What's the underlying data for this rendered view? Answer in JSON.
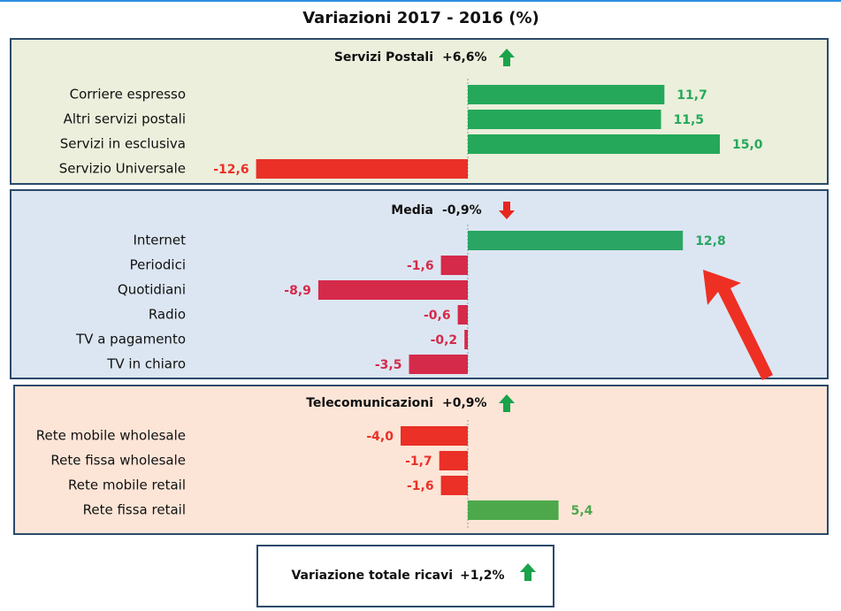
{
  "title": "Variazioni 2017 - 2016 (%)",
  "chart_data": [
    {
      "type": "bar",
      "orientation": "horizontal",
      "title": "Servizi Postali",
      "change": 6.6,
      "change_label": "+6,6%",
      "background": "#ebefdc",
      "positive_color": "#25a85a",
      "negative_color": "#ea3027",
      "categories": [
        "Corriere espresso",
        "Altri servizi postali",
        "Servizi in esclusiva",
        "Servizio Universale"
      ],
      "values": [
        11.7,
        11.5,
        15.0,
        -12.6
      ],
      "value_labels": [
        "11,7",
        "11,5",
        "15,0",
        "-12,6"
      ]
    },
    {
      "type": "bar",
      "orientation": "horizontal",
      "title": "Media",
      "change": -0.9,
      "change_label": "-0,9%",
      "background": "#dce6f2",
      "positive_color": "#2aa564",
      "negative_color": "#d52a4a",
      "categories": [
        "Internet",
        "Periodici",
        "Quotidiani",
        "Radio",
        "TV a pagamento",
        "TV in chiaro"
      ],
      "values": [
        12.8,
        -1.6,
        -8.9,
        -0.6,
        -0.2,
        -3.5
      ],
      "value_labels": [
        "12,8",
        "-1,6",
        "-8,9",
        "-0,6",
        "-0,2",
        "-3,5"
      ]
    },
    {
      "type": "bar",
      "orientation": "horizontal",
      "title": "Telecomunicazioni",
      "change": 0.9,
      "change_label": "+0,9%",
      "background": "#fce5d7",
      "positive_color": "#4ca84a",
      "negative_color": "#ea3027",
      "categories": [
        "Rete mobile wholesale",
        "Rete fissa wholesale",
        "Rete mobile retail",
        "Rete fissa retail"
      ],
      "values": [
        -4.0,
        -1.7,
        -1.6,
        5.4
      ],
      "value_labels": [
        "-4,0",
        "-1,7",
        "-1,6",
        "5,4"
      ]
    }
  ],
  "total": {
    "label": "Variazione totale ricavi",
    "value": 1.2,
    "value_label": "+1,2%"
  }
}
